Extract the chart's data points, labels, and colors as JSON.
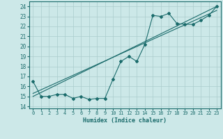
{
  "xlabel": "Humidex (Indice chaleur)",
  "ylabel": "",
  "bg_color": "#cce8e8",
  "line_color": "#1a6b6b",
  "grid_color": "#aacccc",
  "xlim": [
    -0.5,
    23.5
  ],
  "ylim": [
    13.8,
    24.5
  ],
  "yticks": [
    14,
    15,
    16,
    17,
    18,
    19,
    20,
    21,
    22,
    23,
    24
  ],
  "xticks": [
    0,
    1,
    2,
    3,
    4,
    5,
    6,
    7,
    8,
    9,
    10,
    11,
    12,
    13,
    14,
    15,
    16,
    17,
    18,
    19,
    20,
    21,
    22,
    23
  ],
  "main_x": [
    0,
    1,
    2,
    3,
    4,
    5,
    6,
    7,
    8,
    9,
    10,
    11,
    12,
    13,
    14,
    15,
    16,
    17,
    18,
    19,
    20,
    21,
    22,
    23
  ],
  "main_y": [
    16.5,
    15.0,
    15.0,
    15.2,
    15.2,
    14.8,
    15.0,
    14.7,
    14.8,
    14.8,
    16.7,
    18.5,
    19.0,
    18.5,
    20.2,
    23.1,
    23.0,
    23.3,
    22.3,
    22.2,
    22.2,
    22.6,
    23.1,
    24.0
  ],
  "trend1_x": [
    0,
    23
  ],
  "trend1_y": [
    15.0,
    24.0
  ],
  "trend2_x": [
    0,
    23
  ],
  "trend2_y": [
    15.3,
    23.6
  ]
}
